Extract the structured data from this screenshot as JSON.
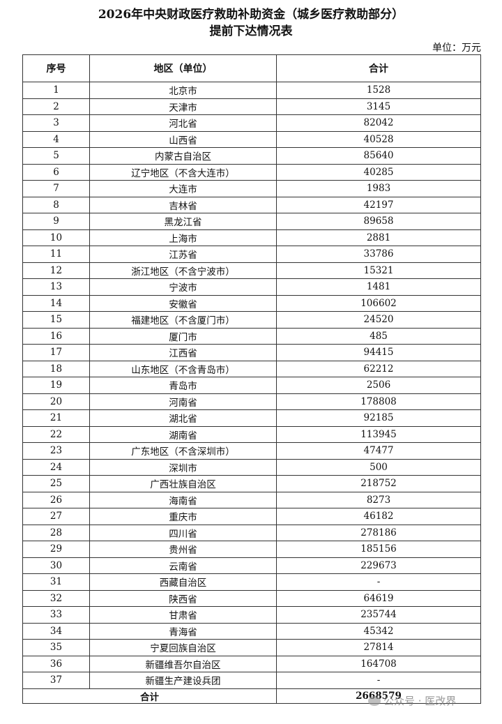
{
  "title_line1": "2026年中央财政医疗救助补助资金（城乡医疗救助部分）",
  "title_line2": "提前下达情况表",
  "unit": "单位：万元",
  "headers": [
    "序号",
    "地区（单位）",
    "合计"
  ],
  "rows": [
    [
      "1",
      "北京市",
      "1528"
    ],
    [
      "2",
      "天津市",
      "3145"
    ],
    [
      "3",
      "河北省",
      "82042"
    ],
    [
      "4",
      "山西省",
      "40528"
    ],
    [
      "5",
      "内蒙古自治区",
      "85640"
    ],
    [
      "6",
      "辽宁地区（不含大连市）",
      "40285"
    ],
    [
      "7",
      "大连市",
      "1983"
    ],
    [
      "8",
      "吉林省",
      "42197"
    ],
    [
      "9",
      "黑龙江省",
      "89658"
    ],
    [
      "10",
      "上海市",
      "2881"
    ],
    [
      "11",
      "江苏省",
      "33786"
    ],
    [
      "12",
      "浙江地区（不含宁波市）",
      "15321"
    ],
    [
      "13",
      "宁波市",
      "1481"
    ],
    [
      "14",
      "安徽省",
      "106602"
    ],
    [
      "15",
      "福建地区（不含厦门市）",
      "24520"
    ],
    [
      "16",
      "厦门市",
      "485"
    ],
    [
      "17",
      "江西省",
      "94415"
    ],
    [
      "18",
      "山东地区（不含青岛市）",
      "62212"
    ],
    [
      "19",
      "青岛市",
      "2506"
    ],
    [
      "20",
      "河南省",
      "178808"
    ],
    [
      "21",
      "湖北省",
      "92185"
    ],
    [
      "22",
      "湖南省",
      "113945"
    ],
    [
      "23",
      "广东地区（不含深圳市）",
      "47477"
    ],
    [
      "24",
      "深圳市",
      "500"
    ],
    [
      "25",
      "广西壮族自治区",
      "218752"
    ],
    [
      "26",
      "海南省",
      "8273"
    ],
    [
      "27",
      "重庆市",
      "46182"
    ],
    [
      "28",
      "四川省",
      "278186"
    ],
    [
      "29",
      "贵州省",
      "185156"
    ],
    [
      "30",
      "云南省",
      "229673"
    ],
    [
      "31",
      "西藏自治区",
      "-"
    ],
    [
      "32",
      "陕西省",
      "64619"
    ],
    [
      "33",
      "甘肃省",
      "235744"
    ],
    [
      "34",
      "青海省",
      "45342"
    ],
    [
      "35",
      "宁夏回族自治区",
      "27814"
    ],
    [
      "36",
      "新疆维吾尔自治区",
      "164708"
    ],
    [
      "37",
      "新疆生产建设兵团",
      "-"
    ]
  ],
  "total": {
    "label": "合计",
    "value": "2668579"
  },
  "watermark": "公众号 · 医改界"
}
